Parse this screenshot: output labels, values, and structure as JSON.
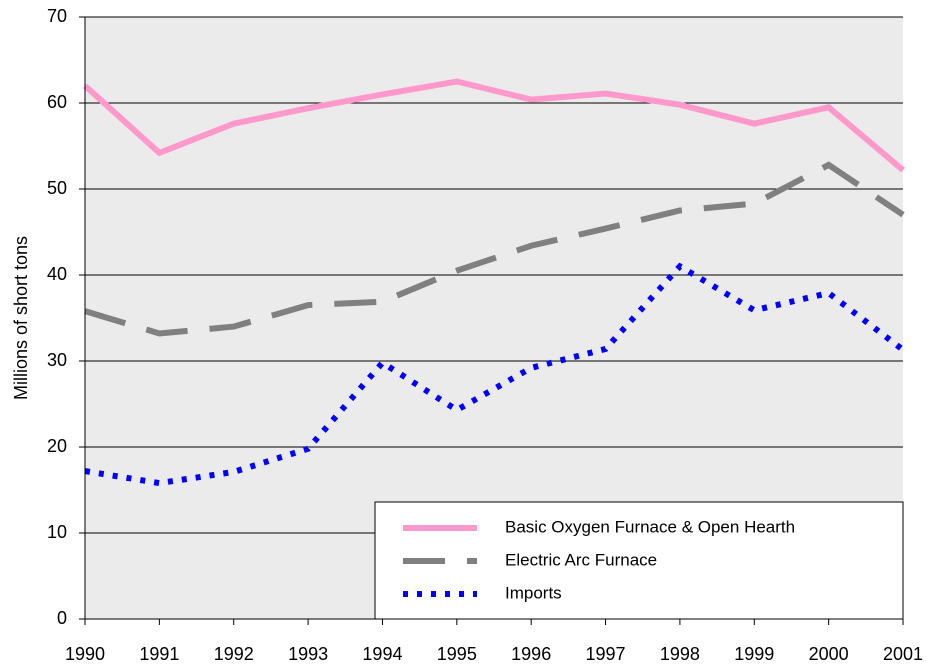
{
  "chart_data": {
    "type": "line",
    "y_label": "Millions of short tons",
    "categories": [
      "1990",
      "1991",
      "1992",
      "1993",
      "1994",
      "1995",
      "1996",
      "1997",
      "1998",
      "1999",
      "2000",
      "2001"
    ],
    "series": [
      {
        "name": "Basic Oxygen Furnace & Open Hearth",
        "color": "#ff99cc",
        "dash": "solid",
        "values": [
          62,
          54.2,
          57.6,
          59.4,
          61,
          62.5,
          60.4,
          61.1,
          59.8,
          57.6,
          59.5,
          52.2
        ]
      },
      {
        "name": "Electric Arc Furnace",
        "color": "#808080",
        "dash": "dashed",
        "values": [
          35.8,
          33.2,
          34,
          36.5,
          36.9,
          40.5,
          43.4,
          45.4,
          47.5,
          48.3,
          52.8,
          47
        ]
      },
      {
        "name": "Imports",
        "color": "#0000ff",
        "dash": "dotted",
        "values": [
          17.2,
          15.8,
          17.1,
          19.8,
          29.8,
          24.3,
          29.2,
          31.4,
          41,
          35.9,
          37.9,
          31.3
        ]
      }
    ],
    "ylim": [
      0,
      70
    ],
    "yticks": [
      0,
      10,
      20,
      30,
      40,
      50,
      60,
      70
    ],
    "grid": true,
    "legend": "lower right"
  }
}
